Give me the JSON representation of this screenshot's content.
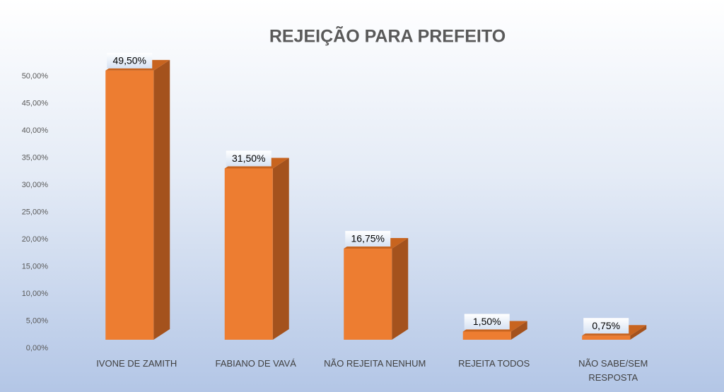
{
  "chart_data": {
    "type": "bar3d",
    "title": "REJEIÇÃO PARA PREFEITO",
    "categories": [
      "IVONE DE ZAMITH",
      "FABIANO DE VAVÁ",
      "NÃO REJEITA NENHUM",
      "REJEITA TODOS",
      "NÃO SABE/SEM RESPOSTA"
    ],
    "values": [
      49.5,
      31.5,
      16.75,
      1.5,
      0.75
    ],
    "value_labels": [
      "49,50%",
      "31,50%",
      "16,75%",
      "1,50%",
      "0,75%"
    ],
    "color": "#ed7d31",
    "ylim": [
      0,
      50
    ],
    "yticks": [
      {
        "value": 0,
        "label": "0,00%"
      },
      {
        "value": 5,
        "label": "5,00%"
      },
      {
        "value": 10,
        "label": "10,00%"
      },
      {
        "value": 15,
        "label": "15,00%"
      },
      {
        "value": 20,
        "label": "20,00%"
      },
      {
        "value": 25,
        "label": "25,00%"
      },
      {
        "value": 30,
        "label": "30,00%"
      },
      {
        "value": 35,
        "label": "35,00%"
      },
      {
        "value": 40,
        "label": "40,00%"
      },
      {
        "value": 45,
        "label": "45,00%"
      },
      {
        "value": 50,
        "label": "50,00%"
      }
    ],
    "grid": false
  }
}
